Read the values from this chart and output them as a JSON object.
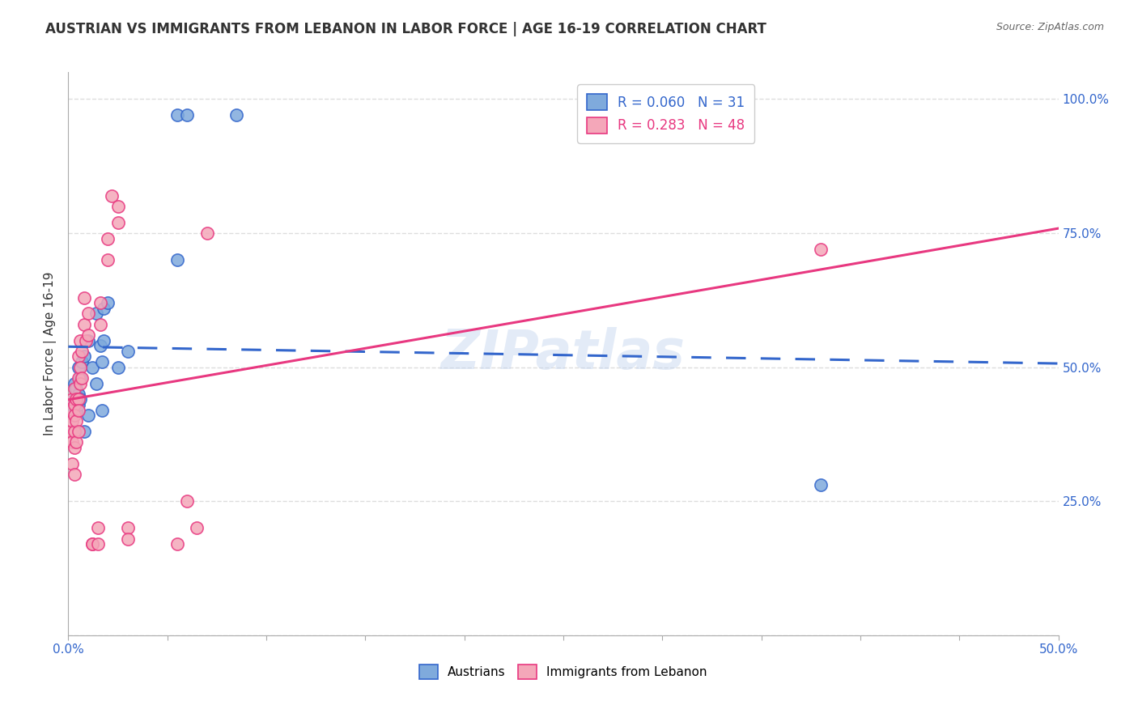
{
  "title": "AUSTRIAN VS IMMIGRANTS FROM LEBANON IN LABOR FORCE | AGE 16-19 CORRELATION CHART",
  "source": "Source: ZipAtlas.com",
  "xlabel": "",
  "ylabel": "In Labor Force | Age 16-19",
  "xlim": [
    0.0,
    0.5
  ],
  "ylim": [
    0.0,
    1.05
  ],
  "xticks": [
    0.0,
    0.05,
    0.1,
    0.15,
    0.2,
    0.25,
    0.3,
    0.35,
    0.4,
    0.45,
    0.5
  ],
  "yticks_right": [
    0.0,
    0.25,
    0.5,
    0.75,
    1.0
  ],
  "yticklabels_right": [
    "",
    "25.0%",
    "50.0%",
    "75.0%",
    "100.0%"
  ],
  "austrians_x": [
    0.002,
    0.003,
    0.003,
    0.004,
    0.004,
    0.005,
    0.005,
    0.005,
    0.006,
    0.006,
    0.007,
    0.008,
    0.008,
    0.01,
    0.01,
    0.012,
    0.014,
    0.014,
    0.016,
    0.017,
    0.017,
    0.018,
    0.018,
    0.02,
    0.025,
    0.03,
    0.055,
    0.055,
    0.06,
    0.085,
    0.38
  ],
  "austrians_y": [
    0.43,
    0.44,
    0.47,
    0.42,
    0.46,
    0.43,
    0.45,
    0.5,
    0.44,
    0.48,
    0.51,
    0.52,
    0.38,
    0.41,
    0.55,
    0.5,
    0.6,
    0.47,
    0.54,
    0.51,
    0.42,
    0.61,
    0.55,
    0.62,
    0.5,
    0.53,
    0.7,
    0.97,
    0.97,
    0.97,
    0.28
  ],
  "lebanon_x": [
    0.001,
    0.001,
    0.002,
    0.002,
    0.002,
    0.002,
    0.003,
    0.003,
    0.003,
    0.003,
    0.003,
    0.003,
    0.004,
    0.004,
    0.004,
    0.005,
    0.005,
    0.005,
    0.005,
    0.005,
    0.006,
    0.006,
    0.006,
    0.007,
    0.007,
    0.008,
    0.008,
    0.009,
    0.01,
    0.01,
    0.012,
    0.012,
    0.015,
    0.015,
    0.016,
    0.016,
    0.02,
    0.02,
    0.022,
    0.025,
    0.025,
    0.03,
    0.03,
    0.055,
    0.06,
    0.065,
    0.07,
    0.38
  ],
  "lebanon_y": [
    0.42,
    0.38,
    0.44,
    0.4,
    0.36,
    0.32,
    0.46,
    0.43,
    0.41,
    0.38,
    0.35,
    0.3,
    0.44,
    0.4,
    0.36,
    0.52,
    0.48,
    0.44,
    0.42,
    0.38,
    0.55,
    0.5,
    0.47,
    0.53,
    0.48,
    0.63,
    0.58,
    0.55,
    0.6,
    0.56,
    0.17,
    0.17,
    0.2,
    0.17,
    0.62,
    0.58,
    0.74,
    0.7,
    0.82,
    0.8,
    0.77,
    0.2,
    0.18,
    0.17,
    0.25,
    0.2,
    0.75,
    0.72
  ],
  "R_austrians": 0.06,
  "N_austrians": 31,
  "R_lebanon": 0.283,
  "N_lebanon": 48,
  "color_austrians": "#7faadc",
  "color_lebanon": "#f4a7b9",
  "trend_color_austrians": "#3366cc",
  "trend_color_lebanon": "#e83880",
  "background_color": "#ffffff",
  "grid_color": "#dddddd",
  "watermark": "ZIPatlas"
}
